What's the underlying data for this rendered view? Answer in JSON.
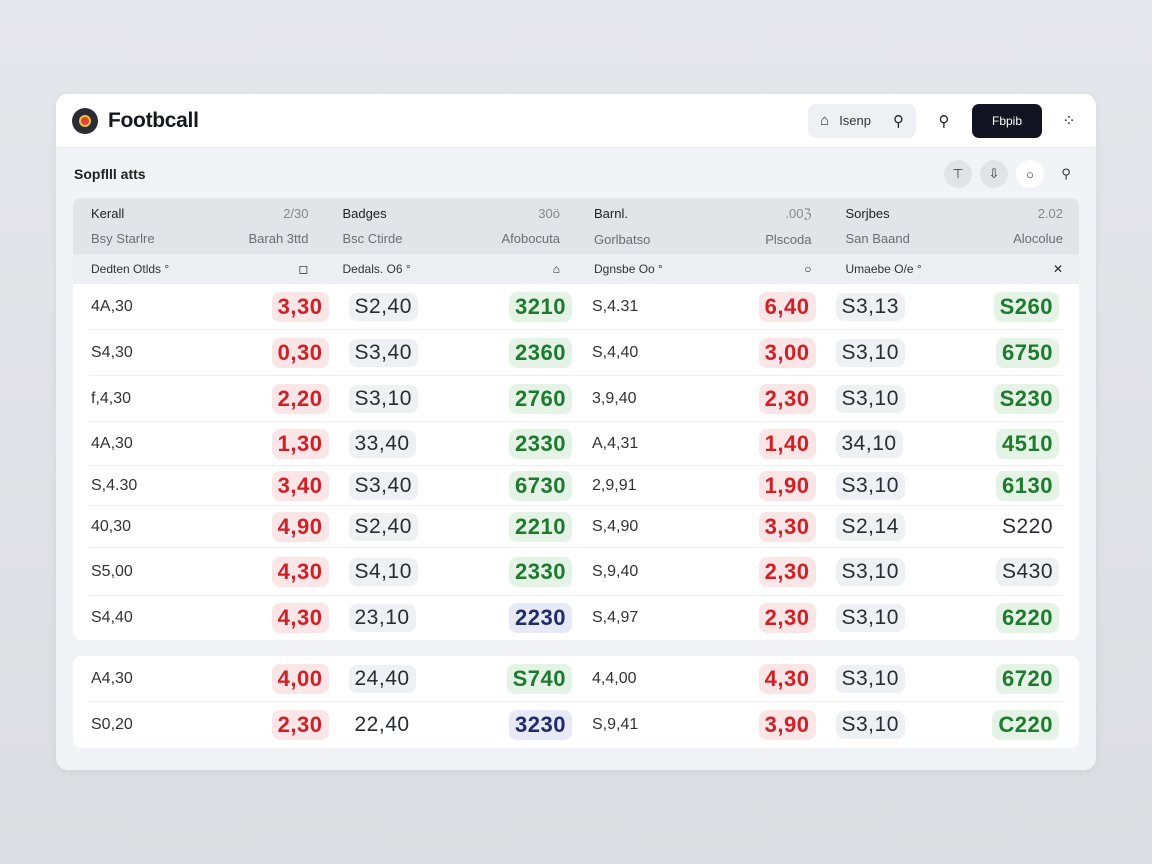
{
  "app": {
    "title": "Footbcall",
    "search_label": "Isenp",
    "primary_button": "Fbpib",
    "subtitle": "Sopflll atts"
  },
  "icons": {
    "logo": "football-logo",
    "home": "home-icon",
    "search": "search-icon",
    "more": "more-icon",
    "upload": "upload-icon",
    "share": "share-icon",
    "circle": "circle-icon"
  },
  "columns": [
    {
      "name": "Kerall",
      "num": "2/30",
      "sub_left": "Bsy Starlre",
      "sub_right": "Barah 3ttd",
      "filter": "Dedten Otlds °",
      "filter_icon": "◻"
    },
    {
      "name": "Badges",
      "num": "30ö",
      "sub_left": "Bsc Ctirde",
      "sub_right": "Afobocuta",
      "filter": "Dedals. O6 °",
      "filter_icon": "⌂"
    },
    {
      "name": "Barnl.",
      "num": ".00ℨ",
      "sub_left": "Gorlbatso",
      "sub_right": "Plscoda",
      "filter": "Dgnsbe Oo °",
      "filter_icon": "○"
    },
    {
      "name": "Sorjbes",
      "num": "2.02",
      "sub_left": "San Baand",
      "sub_right": "Alocolue",
      "filter": "Umaebe O/e °",
      "filter_icon": "✕"
    }
  ],
  "rows_main": [
    {
      "h": 46,
      "c": [
        {
          "a": "4A,30",
          "b": "3,30",
          "bt": "red"
        },
        {
          "a": "S2,40",
          "at": "gray",
          "b": "3210",
          "bt": "green"
        },
        {
          "a": "S,4.31",
          "b": "6,40",
          "bt": "red"
        },
        {
          "a": "S3,13",
          "at": "gray",
          "b": "S260",
          "bt": "green"
        }
      ]
    },
    {
      "h": 46,
      "c": [
        {
          "a": "S4,30",
          "b": "0,30",
          "bt": "red"
        },
        {
          "a": "S3,40",
          "at": "gray",
          "b": "2360",
          "bt": "green"
        },
        {
          "a": "S,4,40",
          "b": "3,00",
          "bt": "red"
        },
        {
          "a": "S3,10",
          "at": "gray",
          "b": "6750",
          "bt": "green"
        }
      ]
    },
    {
      "h": 46,
      "c": [
        {
          "a": "f,4,30",
          "b": "2,20",
          "bt": "red"
        },
        {
          "a": "S3,10",
          "at": "gray",
          "b": "2760",
          "bt": "green"
        },
        {
          "a": "3,9,40",
          "b": "2,30",
          "bt": "red"
        },
        {
          "a": "S3,10",
          "at": "gray",
          "b": "S230",
          "bt": "green"
        }
      ]
    },
    {
      "h": 44,
      "c": [
        {
          "a": "4A,30",
          "b": "1,30",
          "bt": "red"
        },
        {
          "a": "33,40",
          "at": "gray",
          "b": "2330",
          "bt": "green"
        },
        {
          "a": "A,4,31",
          "b": "1,40",
          "bt": "red"
        },
        {
          "a": "34,10",
          "at": "gray",
          "b": "4510",
          "bt": "green"
        }
      ]
    },
    {
      "h": 40,
      "c": [
        {
          "a": "S,4.30",
          "b": "3,40",
          "bt": "red"
        },
        {
          "a": "S3,40",
          "at": "gray",
          "b": "6730",
          "bt": "green"
        },
        {
          "a": "2,9,91",
          "b": "1,90",
          "bt": "red"
        },
        {
          "a": "S3,10",
          "at": "gray",
          "b": "6130",
          "bt": "green"
        }
      ]
    },
    {
      "h": 42,
      "c": [
        {
          "a": "40,30",
          "b": "4,90",
          "bt": "red"
        },
        {
          "a": "S2,40",
          "at": "gray",
          "b": "2210",
          "bt": "green"
        },
        {
          "a": "S,4,90",
          "b": "3,30",
          "bt": "red"
        },
        {
          "a": "S2,14",
          "at": "gray",
          "b": "S220",
          "bt": "plain"
        }
      ]
    },
    {
      "h": 48,
      "c": [
        {
          "a": "S5,00",
          "b": "4,30",
          "bt": "red"
        },
        {
          "a": "S4,10",
          "at": "gray",
          "b": "2330",
          "bt": "green"
        },
        {
          "a": "S,9,40",
          "b": "2,30",
          "bt": "red"
        },
        {
          "a": "S3,10",
          "at": "gray",
          "b": "S430",
          "bt": "gray"
        }
      ]
    },
    {
      "h": 44,
      "c": [
        {
          "a": "S4,40",
          "b": "4,30",
          "bt": "red"
        },
        {
          "a": "23,10",
          "at": "gray",
          "b": "2230",
          "bt": "blue"
        },
        {
          "a": "S,4,97",
          "b": "2,30",
          "bt": "red"
        },
        {
          "a": "S3,10",
          "at": "gray",
          "b": "6220",
          "bt": "green"
        }
      ]
    }
  ],
  "rows_extra": [
    {
      "h": 46,
      "c": [
        {
          "a": "A4,30",
          "b": "4,00",
          "bt": "red"
        },
        {
          "a": "24,40",
          "at": "gray",
          "b": "S740",
          "bt": "green"
        },
        {
          "a": "4,4,00",
          "b": "4,30",
          "bt": "red"
        },
        {
          "a": "S3,10",
          "at": "gray",
          "b": "6720",
          "bt": "green"
        }
      ]
    },
    {
      "h": 46,
      "c": [
        {
          "a": "S0,20",
          "b": "2,30",
          "bt": "red"
        },
        {
          "a": "22,40",
          "at": "plain",
          "b": "3230",
          "bt": "blue"
        },
        {
          "a": "S,9,41",
          "b": "3,90",
          "bt": "red"
        },
        {
          "a": "S3,10",
          "at": "gray",
          "b": "C220",
          "bt": "green"
        }
      ]
    }
  ]
}
